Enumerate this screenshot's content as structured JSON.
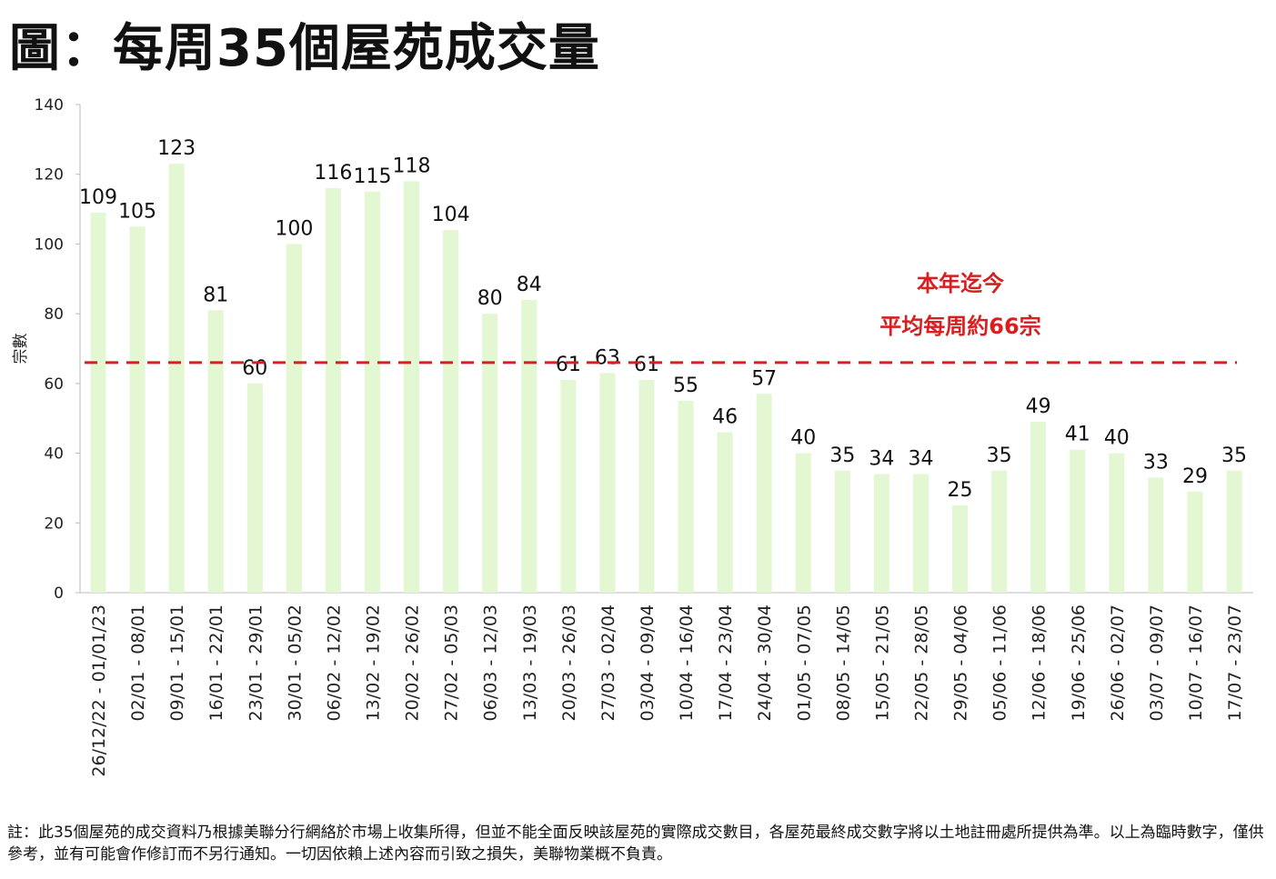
{
  "title": "圖：每周35個屋苑成交量",
  "note": "註：此35個屋苑的成交資料乃根據美聯分行網絡於市場上收集所得，但並不能全面反映該屋苑的實際成交數目，各屋苑最終成交數字將以土地註冊處所提供為準。以上為臨時數字，僅供參考，並有可能會作修訂而不另行通知。一切因依賴上述內容而引致之損失，美聯物業概不負責。",
  "chart_data": {
    "type": "bar",
    "title": "每周35個屋苑成交量",
    "xlabel": "",
    "ylabel": "宗數",
    "ylim": [
      0,
      140
    ],
    "yticks": [
      0,
      20,
      40,
      60,
      80,
      100,
      120,
      140
    ],
    "grid": false,
    "categories": [
      "26/12/22 - 01/01/23",
      "02/01 - 08/01",
      "09/01 - 15/01",
      "16/01 - 22/01",
      "23/01 - 29/01",
      "30/01 - 05/02",
      "06/02 - 12/02",
      "13/02 - 19/02",
      "20/02 - 26/02",
      "27/02 - 05/03",
      "06/03 - 12/03",
      "13/03 - 19/03",
      "20/03 - 26/03",
      "27/03 - 02/04",
      "03/04 - 09/04",
      "10/04 - 16/04",
      "17/04 - 23/04",
      "24/04 - 30/04",
      "01/05 - 07/05",
      "08/05 - 14/05",
      "15/05 - 21/05",
      "22/05 - 28/05",
      "29/05 - 04/06",
      "05/06 - 11/06",
      "12/06 - 18/06",
      "19/06 - 25/06",
      "26/06 - 02/07",
      "03/07 - 09/07",
      "10/07 - 16/07",
      "17/07 - 23/07"
    ],
    "values": [
      109,
      105,
      123,
      81,
      60,
      100,
      116,
      115,
      118,
      104,
      80,
      84,
      61,
      63,
      61,
      55,
      46,
      57,
      40,
      35,
      34,
      34,
      25,
      35,
      49,
      41,
      40,
      33,
      29,
      35
    ],
    "bar_color": "#e2f7d2",
    "average_line": {
      "value": 66,
      "color": "#d62020",
      "style": "dashed"
    },
    "annotation": [
      "本年迄今",
      "平均每周約66宗"
    ]
  }
}
